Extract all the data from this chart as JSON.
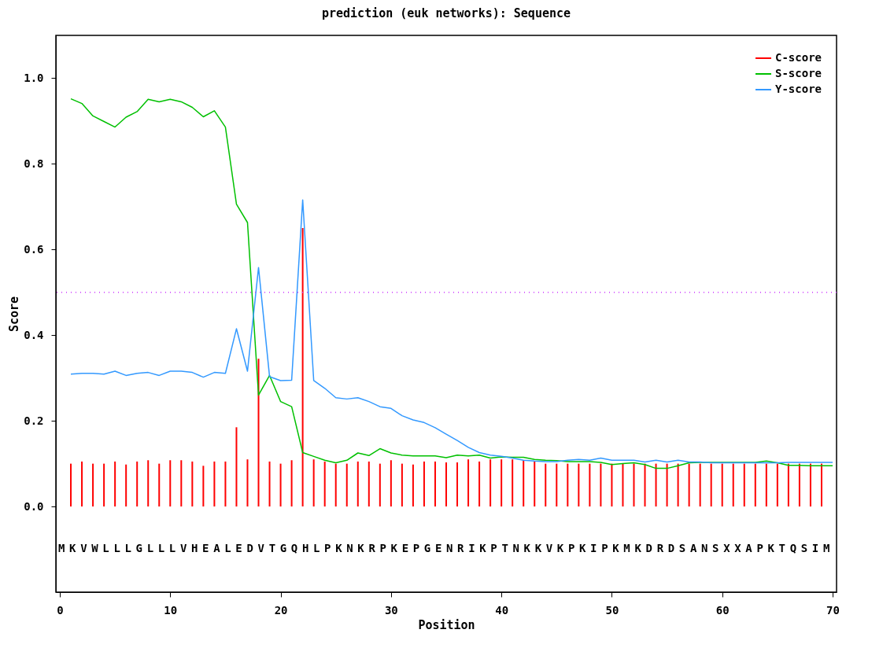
{
  "chart_data": {
    "type": "line",
    "title": "prediction (euk networks): Sequence",
    "xlabel": "Position",
    "ylabel": "Score",
    "xlim": [
      0,
      70
    ],
    "xticks": [
      0,
      10,
      20,
      30,
      40,
      50,
      60,
      70
    ],
    "ylim": [
      -0.2,
      1.1
    ],
    "yticks": [
      {
        "value": 0,
        "label": "0.0"
      },
      {
        "value": 0.2,
        "label": "0.2"
      },
      {
        "value": 0.4,
        "label": "0.4"
      },
      {
        "value": 0.6,
        "label": "0.6"
      },
      {
        "value": 0.8,
        "label": "0.8"
      },
      {
        "value": 1,
        "label": "1.0"
      }
    ],
    "grid": false,
    "legend": "top right",
    "marker": "none",
    "series": [
      {
        "name": "C-score",
        "type": "bar",
        "color": "#ff0000",
        "x": [
          1,
          2,
          3,
          4,
          5,
          6,
          7,
          8,
          9,
          10,
          11,
          12,
          13,
          14,
          15,
          16,
          17,
          18,
          19,
          20,
          21,
          22,
          23,
          24,
          25,
          26,
          27,
          28,
          29,
          30,
          31,
          32,
          33,
          34,
          35,
          36,
          37,
          38,
          39,
          40,
          41,
          42,
          43,
          44,
          45,
          46,
          47,
          48,
          49,
          50,
          51,
          52,
          53,
          54,
          55,
          56,
          57,
          58,
          59,
          60,
          61,
          62,
          63,
          64,
          65,
          66,
          67,
          68,
          69
        ],
        "values": [
          0.1,
          0.105,
          0.1,
          0.1,
          0.105,
          0.098,
          0.105,
          0.108,
          0.1,
          0.108,
          0.108,
          0.105,
          0.095,
          0.105,
          0.105,
          0.185,
          0.11,
          0.345,
          0.105,
          0.1,
          0.108,
          0.65,
          0.11,
          0.105,
          0.1,
          0.1,
          0.105,
          0.105,
          0.1,
          0.108,
          0.1,
          0.098,
          0.105,
          0.105,
          0.103,
          0.103,
          0.11,
          0.105,
          0.11,
          0.11,
          0.11,
          0.108,
          0.105,
          0.1,
          0.1,
          0.1,
          0.1,
          0.1,
          0.1,
          0.1,
          0.1,
          0.1,
          0.1,
          0.1,
          0.1,
          0.1,
          0.1,
          0.1,
          0.1,
          0.1,
          0.1,
          0.1,
          0.1,
          0.1,
          0.1,
          0.1,
          0.1,
          0.1,
          0.1
        ]
      },
      {
        "name": "S-score",
        "color": "#00c000",
        "x": [
          1,
          2,
          3,
          4,
          5,
          6,
          7,
          8,
          9,
          10,
          11,
          12,
          13,
          14,
          15,
          16,
          17,
          18,
          19,
          20,
          21,
          22,
          23,
          24,
          25,
          26,
          27,
          28,
          29,
          30,
          31,
          32,
          33,
          34,
          35,
          36,
          37,
          38,
          39,
          40,
          41,
          42,
          43,
          44,
          45,
          46,
          47,
          48,
          49,
          50,
          51,
          52,
          53,
          54,
          55,
          56,
          57,
          58,
          59,
          60,
          61,
          62,
          63,
          64,
          65,
          66,
          67,
          68,
          69,
          70
        ],
        "values": [
          0.952,
          0.941,
          0.912,
          0.899,
          0.886,
          0.909,
          0.922,
          0.951,
          0.945,
          0.951,
          0.945,
          0.932,
          0.91,
          0.924,
          0.886,
          0.706,
          0.663,
          0.26,
          0.306,
          0.245,
          0.233,
          0.126,
          0.117,
          0.108,
          0.102,
          0.108,
          0.125,
          0.119,
          0.135,
          0.125,
          0.12,
          0.118,
          0.118,
          0.118,
          0.114,
          0.12,
          0.118,
          0.12,
          0.113,
          0.116,
          0.115,
          0.115,
          0.11,
          0.108,
          0.107,
          0.105,
          0.105,
          0.105,
          0.103,
          0.098,
          0.1,
          0.102,
          0.098,
          0.089,
          0.089,
          0.095,
          0.102,
          0.103,
          0.103,
          0.103,
          0.103,
          0.103,
          0.103,
          0.106,
          0.102,
          0.096,
          0.096,
          0.095,
          0.095,
          0.095
        ]
      },
      {
        "name": "Y-score",
        "color": "#3399ff",
        "x": [
          1,
          2,
          3,
          4,
          5,
          6,
          7,
          8,
          9,
          10,
          11,
          12,
          13,
          14,
          15,
          16,
          17,
          18,
          19,
          20,
          21,
          22,
          23,
          24,
          25,
          26,
          27,
          28,
          29,
          30,
          31,
          32,
          33,
          34,
          35,
          36,
          37,
          38,
          39,
          40,
          41,
          42,
          43,
          44,
          45,
          46,
          47,
          48,
          49,
          50,
          51,
          52,
          53,
          54,
          55,
          56,
          57,
          58,
          59,
          60,
          61,
          62,
          63,
          64,
          65,
          66,
          67,
          68,
          69,
          70
        ],
        "values": [
          0.309,
          0.311,
          0.311,
          0.309,
          0.316,
          0.306,
          0.311,
          0.313,
          0.306,
          0.316,
          0.316,
          0.313,
          0.302,
          0.313,
          0.311,
          0.415,
          0.316,
          0.558,
          0.303,
          0.294,
          0.295,
          0.716,
          0.294,
          0.276,
          0.254,
          0.251,
          0.254,
          0.245,
          0.233,
          0.229,
          0.212,
          0.202,
          0.196,
          0.184,
          0.169,
          0.154,
          0.138,
          0.126,
          0.12,
          0.117,
          0.113,
          0.108,
          0.106,
          0.105,
          0.105,
          0.108,
          0.11,
          0.108,
          0.113,
          0.108,
          0.108,
          0.108,
          0.104,
          0.108,
          0.104,
          0.108,
          0.104,
          0.104,
          0.102,
          0.102,
          0.102,
          0.102,
          0.102,
          0.102,
          0.102,
          0.103,
          0.103,
          0.103,
          0.103,
          0.103
        ]
      }
    ],
    "ref_lines": [
      {
        "axis": "y",
        "value": 0.5,
        "color": "#cc33ff",
        "line_style": "dotted"
      }
    ],
    "annotations": [
      "MKVWLLLGLLLVHEALEDVTGQHLPKNKRPKEPGENRIKPTNKKVKPKIPKMKDRDSANSXXAPKTQSIM"
    ]
  }
}
